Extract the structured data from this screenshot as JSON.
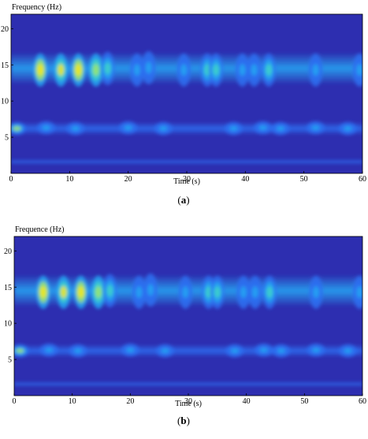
{
  "chart_data": [
    {
      "type": "heatmap",
      "subtype": "spectrogram",
      "ylabel": "Frequency (Hz)",
      "xlabel": "Time (s)",
      "caption": "a",
      "xlim": [
        0,
        60
      ],
      "ylim": [
        0,
        22
      ],
      "xticks": [
        0,
        10,
        20,
        30,
        40,
        50,
        60
      ],
      "yticks": [
        5,
        10,
        15,
        20
      ],
      "colormap": [
        "#2a2db5",
        "#2f4ad6",
        "#2d6ef0",
        "#27a4f2",
        "#3fd2c8",
        "#9ee66a",
        "#f4e619"
      ],
      "background_color": "#2d2eb0",
      "bands": [
        {
          "freq_center": 14.5,
          "freq_halfwidth": 2.2,
          "intensity": 0.45
        },
        {
          "freq_center": 6.2,
          "freq_halfwidth": 0.9,
          "intensity": 0.38
        },
        {
          "freq_center": 1.6,
          "freq_halfwidth": 0.35,
          "intensity": 0.3
        }
      ],
      "hotspots": [
        {
          "t": 5,
          "f": 14.3,
          "intensity": 1.0
        },
        {
          "t": 8.5,
          "f": 14.3,
          "intensity": 0.92
        },
        {
          "t": 11.5,
          "f": 14.3,
          "intensity": 1.0
        },
        {
          "t": 14.5,
          "f": 14.3,
          "intensity": 0.9
        },
        {
          "t": 16.5,
          "f": 14.5,
          "intensity": 0.6
        },
        {
          "t": 21.5,
          "f": 14.3,
          "intensity": 0.55
        },
        {
          "t": 23.5,
          "f": 14.6,
          "intensity": 0.45
        },
        {
          "t": 29.5,
          "f": 14.3,
          "intensity": 0.5
        },
        {
          "t": 33.5,
          "f": 14.3,
          "intensity": 0.62
        },
        {
          "t": 35,
          "f": 14.3,
          "intensity": 0.6
        },
        {
          "t": 39.5,
          "f": 14.3,
          "intensity": 0.55
        },
        {
          "t": 41.5,
          "f": 14.3,
          "intensity": 0.5
        },
        {
          "t": 44,
          "f": 14.3,
          "intensity": 0.6
        },
        {
          "t": 52,
          "f": 14.3,
          "intensity": 0.45
        },
        {
          "t": 59.5,
          "f": 14.3,
          "intensity": 0.45
        },
        {
          "t": 1,
          "f": 6.2,
          "intensity": 0.75
        },
        {
          "t": 6,
          "f": 6.3,
          "intensity": 0.5
        },
        {
          "t": 11,
          "f": 6.2,
          "intensity": 0.5
        },
        {
          "t": 20,
          "f": 6.3,
          "intensity": 0.45
        },
        {
          "t": 26,
          "f": 6.2,
          "intensity": 0.42
        },
        {
          "t": 38,
          "f": 6.2,
          "intensity": 0.5
        },
        {
          "t": 43,
          "f": 6.3,
          "intensity": 0.55
        },
        {
          "t": 46,
          "f": 6.2,
          "intensity": 0.55
        },
        {
          "t": 52,
          "f": 6.3,
          "intensity": 0.45
        },
        {
          "t": 57.5,
          "f": 6.2,
          "intensity": 0.5
        }
      ]
    },
    {
      "type": "heatmap",
      "subtype": "spectrogram",
      "ylabel": "Frequence (Hz)",
      "xlabel": "Time (s)",
      "caption": "b",
      "xlim": [
        0,
        60
      ],
      "ylim": [
        0,
        22
      ],
      "xticks": [
        0,
        10,
        20,
        30,
        40,
        50,
        60
      ],
      "yticks": [
        5,
        10,
        15,
        20
      ],
      "colormap": [
        "#2a2db5",
        "#2f4ad6",
        "#2d6ef0",
        "#27a4f2",
        "#3fd2c8",
        "#9ee66a",
        "#f4e619"
      ],
      "background_color": "#2d2eb0",
      "bands": [
        {
          "freq_center": 14.5,
          "freq_halfwidth": 2.2,
          "intensity": 0.45
        },
        {
          "freq_center": 6.2,
          "freq_halfwidth": 0.9,
          "intensity": 0.38
        },
        {
          "freq_center": 1.6,
          "freq_halfwidth": 0.35,
          "intensity": 0.3
        }
      ],
      "hotspots": [
        {
          "t": 5,
          "f": 14.3,
          "intensity": 1.0
        },
        {
          "t": 8.5,
          "f": 14.3,
          "intensity": 0.92
        },
        {
          "t": 11.5,
          "f": 14.3,
          "intensity": 1.0
        },
        {
          "t": 14.5,
          "f": 14.3,
          "intensity": 0.9
        },
        {
          "t": 16.5,
          "f": 14.5,
          "intensity": 0.6
        },
        {
          "t": 21.5,
          "f": 14.3,
          "intensity": 0.55
        },
        {
          "t": 23.5,
          "f": 14.6,
          "intensity": 0.45
        },
        {
          "t": 29.5,
          "f": 14.3,
          "intensity": 0.5
        },
        {
          "t": 33.5,
          "f": 14.3,
          "intensity": 0.62
        },
        {
          "t": 35,
          "f": 14.3,
          "intensity": 0.6
        },
        {
          "t": 39.5,
          "f": 14.3,
          "intensity": 0.55
        },
        {
          "t": 41.5,
          "f": 14.3,
          "intensity": 0.5
        },
        {
          "t": 44,
          "f": 14.3,
          "intensity": 0.6
        },
        {
          "t": 52,
          "f": 14.3,
          "intensity": 0.45
        },
        {
          "t": 59.5,
          "f": 14.3,
          "intensity": 0.45
        },
        {
          "t": 1,
          "f": 6.2,
          "intensity": 0.75
        },
        {
          "t": 6,
          "f": 6.3,
          "intensity": 0.5
        },
        {
          "t": 11,
          "f": 6.2,
          "intensity": 0.5
        },
        {
          "t": 20,
          "f": 6.3,
          "intensity": 0.45
        },
        {
          "t": 26,
          "f": 6.2,
          "intensity": 0.42
        },
        {
          "t": 38,
          "f": 6.2,
          "intensity": 0.5
        },
        {
          "t": 43,
          "f": 6.3,
          "intensity": 0.55
        },
        {
          "t": 46,
          "f": 6.2,
          "intensity": 0.55
        },
        {
          "t": 52,
          "f": 6.3,
          "intensity": 0.45
        },
        {
          "t": 57.5,
          "f": 6.2,
          "intensity": 0.5
        }
      ]
    }
  ]
}
